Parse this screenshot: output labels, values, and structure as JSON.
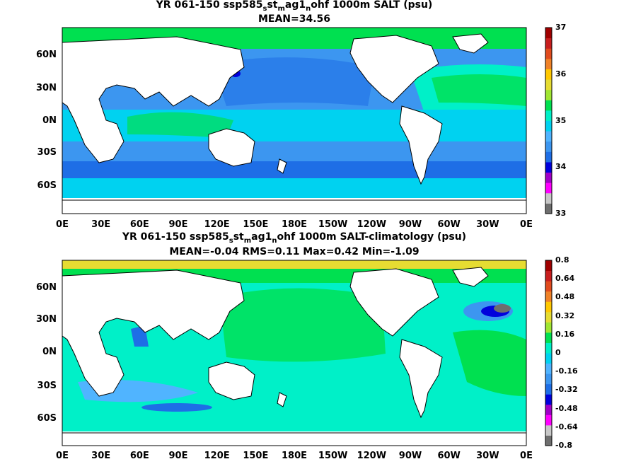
{
  "panels": [
    {
      "title_pre": "YR 061-150 ssp585",
      "title_sub1": "s",
      "title_mid1": "st",
      "title_sub2": "m",
      "title_mid2": "ag1",
      "title_sub3": "n",
      "title_post": "ohf 1000m SALT (psu)",
      "subtitle": "MEAN=34.56",
      "colorbar_ticks": [
        "37",
        "36",
        "35",
        "34",
        "33"
      ],
      "colors": [
        "#6e6e6e",
        "#c8c8c8",
        "#ff00ff",
        "#a000c8",
        "#0000dc",
        "#1e6ee6",
        "#3c96f0",
        "#50b4ff",
        "#00d2f0",
        "#00f0c8",
        "#00e050",
        "#a0e632",
        "#e6dc32",
        "#ffc800",
        "#f08228",
        "#e14b1e",
        "#c81e1e",
        "#a00000"
      ]
    },
    {
      "title_pre": "YR 061-150 ssp585",
      "title_sub1": "s",
      "title_mid1": "st",
      "title_sub2": "m",
      "title_mid2": "ag1",
      "title_sub3": "n",
      "title_post": "ohf 1000m SALT-climatology (psu)",
      "subtitle": "MEAN=-0.04   RMS=0.11   Max=0.42   Min=-1.09",
      "colorbar_ticks": [
        "0.8",
        "0.64",
        "0.48",
        "0.32",
        "0.16",
        "0",
        "-0.16",
        "-0.32",
        "-0.48",
        "-0.64",
        "-0.8"
      ],
      "colors": [
        "#6e6e6e",
        "#c8c8c8",
        "#ff00ff",
        "#a000c8",
        "#0000dc",
        "#1e6ee6",
        "#3c96f0",
        "#50b4ff",
        "#00d2f0",
        "#00f0c8",
        "#00e050",
        "#a0e632",
        "#e6dc32",
        "#ffc800",
        "#f08228",
        "#e14b1e",
        "#c81e1e",
        "#a00000"
      ]
    }
  ],
  "lat_labels": [
    "60N",
    "30N",
    "0N",
    "30S",
    "60S"
  ],
  "lon_labels": [
    "0E",
    "30E",
    "60E",
    "90E",
    "120E",
    "150E",
    "180E",
    "150W",
    "120W",
    "90W",
    "60W",
    "30W",
    "0E"
  ]
}
